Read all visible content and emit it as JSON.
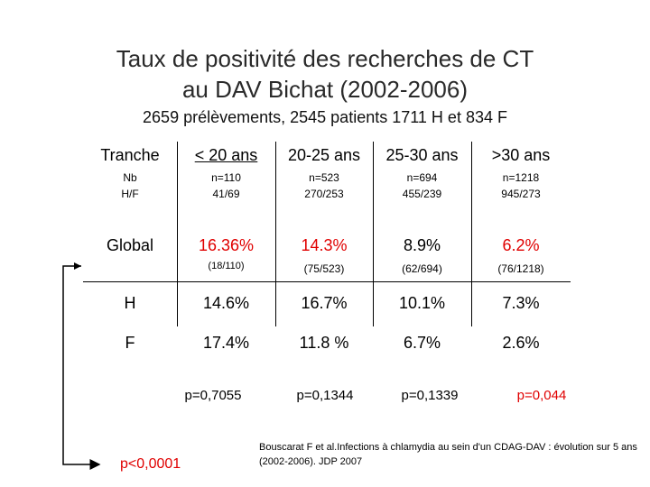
{
  "title": {
    "line1": "Taux de positivité  des recherches de CT",
    "line2": "au DAV  Bichat (2002-2006)"
  },
  "subtitle": "2659 prélèvements, 2545 patients 1711 H et 834 F",
  "table": {
    "headers": [
      "Tranche",
      "< 20 ans",
      "20-25 ans",
      "25-30 ans",
      ">30 ans"
    ],
    "nb": {
      "label1": "Nb",
      "label2": "H/F",
      "values": [
        {
          "n": "n=110",
          "hf": "41/69"
        },
        {
          "n": "n=523",
          "hf": "270/253"
        },
        {
          "n": "n=694",
          "hf": "455/239"
        },
        {
          "n": "n=1218",
          "hf": "945/273"
        }
      ]
    },
    "global": {
      "label": "Global",
      "values": [
        "16.36%",
        "14.3%",
        "8.9%",
        "6.2%"
      ],
      "details": [
        "(18/110)",
        "(75/523)",
        "(62/694)",
        "(76/1218)"
      ]
    },
    "h": {
      "label": "H",
      "values": [
        "14.6%",
        "16.7%",
        "10.1%",
        "7.3%"
      ]
    },
    "f": {
      "label": "F",
      "values": [
        "17.4%",
        "11.8 %",
        "6.7%",
        "2.6%"
      ]
    }
  },
  "pvalues": [
    "p=0,7055",
    "p=0,1344",
    "p=0,1339",
    "p=0,044"
  ],
  "p_global": "p<0,0001",
  "reference": "Bouscarat F et al.Infections à chlamydia au sein d'un CDAG-DAV : évolution sur 5 ans (2002-2006). JDP 2007",
  "colors": {
    "highlight": "#e00000",
    "text": "#000000"
  }
}
